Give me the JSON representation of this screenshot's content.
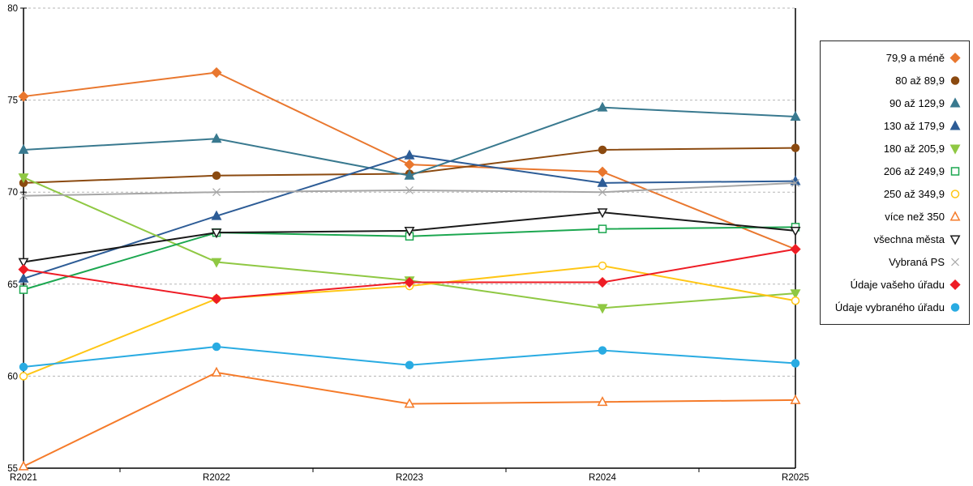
{
  "chart_data": {
    "type": "line",
    "title": "",
    "xlabel": "",
    "ylabel": "",
    "categories": [
      "R2021",
      "R2022",
      "R2023",
      "R2024",
      "R2025"
    ],
    "ylim": [
      55,
      80
    ],
    "yticks": [
      80,
      75,
      70,
      65,
      60,
      55
    ],
    "grid": "dashed-horizontal",
    "gridline_color": "#b5b5b5",
    "axis_color": "#000000",
    "legend_position": "right",
    "series": [
      {
        "name": "79,9 a méně",
        "color": "#E9772E",
        "marker": "diamond",
        "fill": "solid",
        "values": [
          75.2,
          76.5,
          71.5,
          71.1,
          66.9
        ]
      },
      {
        "name": "80 až 89,9",
        "color": "#8B4A10",
        "marker": "circle",
        "fill": "solid",
        "values": [
          70.5,
          70.9,
          71.0,
          72.3,
          72.4
        ]
      },
      {
        "name": "90 až 129,9",
        "color": "#39798F",
        "marker": "triangle-up",
        "fill": "solid",
        "values": [
          72.3,
          72.9,
          70.9,
          74.6,
          74.1
        ]
      },
      {
        "name": "130 až 179,9",
        "color": "#2D5C96",
        "marker": "triangle-up",
        "fill": "solid",
        "values": [
          65.3,
          68.7,
          72.0,
          70.5,
          70.6
        ]
      },
      {
        "name": "180 až 205,9",
        "color": "#8FC843",
        "marker": "triangle-down",
        "fill": "solid",
        "values": [
          70.8,
          66.2,
          65.2,
          63.7,
          64.5
        ]
      },
      {
        "name": "206 až 249,9",
        "color": "#1CA750",
        "marker": "square",
        "fill": "open",
        "values": [
          64.7,
          67.8,
          67.6,
          68.0,
          68.1
        ]
      },
      {
        "name": "250 až 349,9",
        "color": "#FFC615",
        "marker": "circle",
        "fill": "open",
        "values": [
          60.0,
          64.2,
          64.9,
          66.0,
          64.1
        ]
      },
      {
        "name": "více než 350",
        "color": "#F57B2A",
        "marker": "triangle-up",
        "fill": "open",
        "values": [
          55.1,
          60.2,
          58.5,
          58.6,
          58.7
        ]
      },
      {
        "name": "všechna města",
        "color": "#1A1A1A",
        "marker": "triangle-down",
        "fill": "open",
        "values": [
          66.2,
          67.8,
          67.9,
          68.9,
          67.9
        ]
      },
      {
        "name": "Vybraná PS",
        "color": "#A6A6A6",
        "marker": "x",
        "fill": "open",
        "values": [
          69.8,
          70.0,
          70.1,
          70.0,
          70.5
        ]
      },
      {
        "name": "Údaje vašeho úřadu",
        "color": "#EE1C25",
        "marker": "diamond",
        "fill": "solid",
        "values": [
          65.8,
          64.2,
          65.1,
          65.1,
          66.9
        ]
      },
      {
        "name": "Údaje vybraného úřadu",
        "color": "#29ABE2",
        "marker": "circle",
        "fill": "solid",
        "values": [
          60.5,
          61.6,
          60.6,
          61.4,
          60.7
        ]
      }
    ]
  }
}
